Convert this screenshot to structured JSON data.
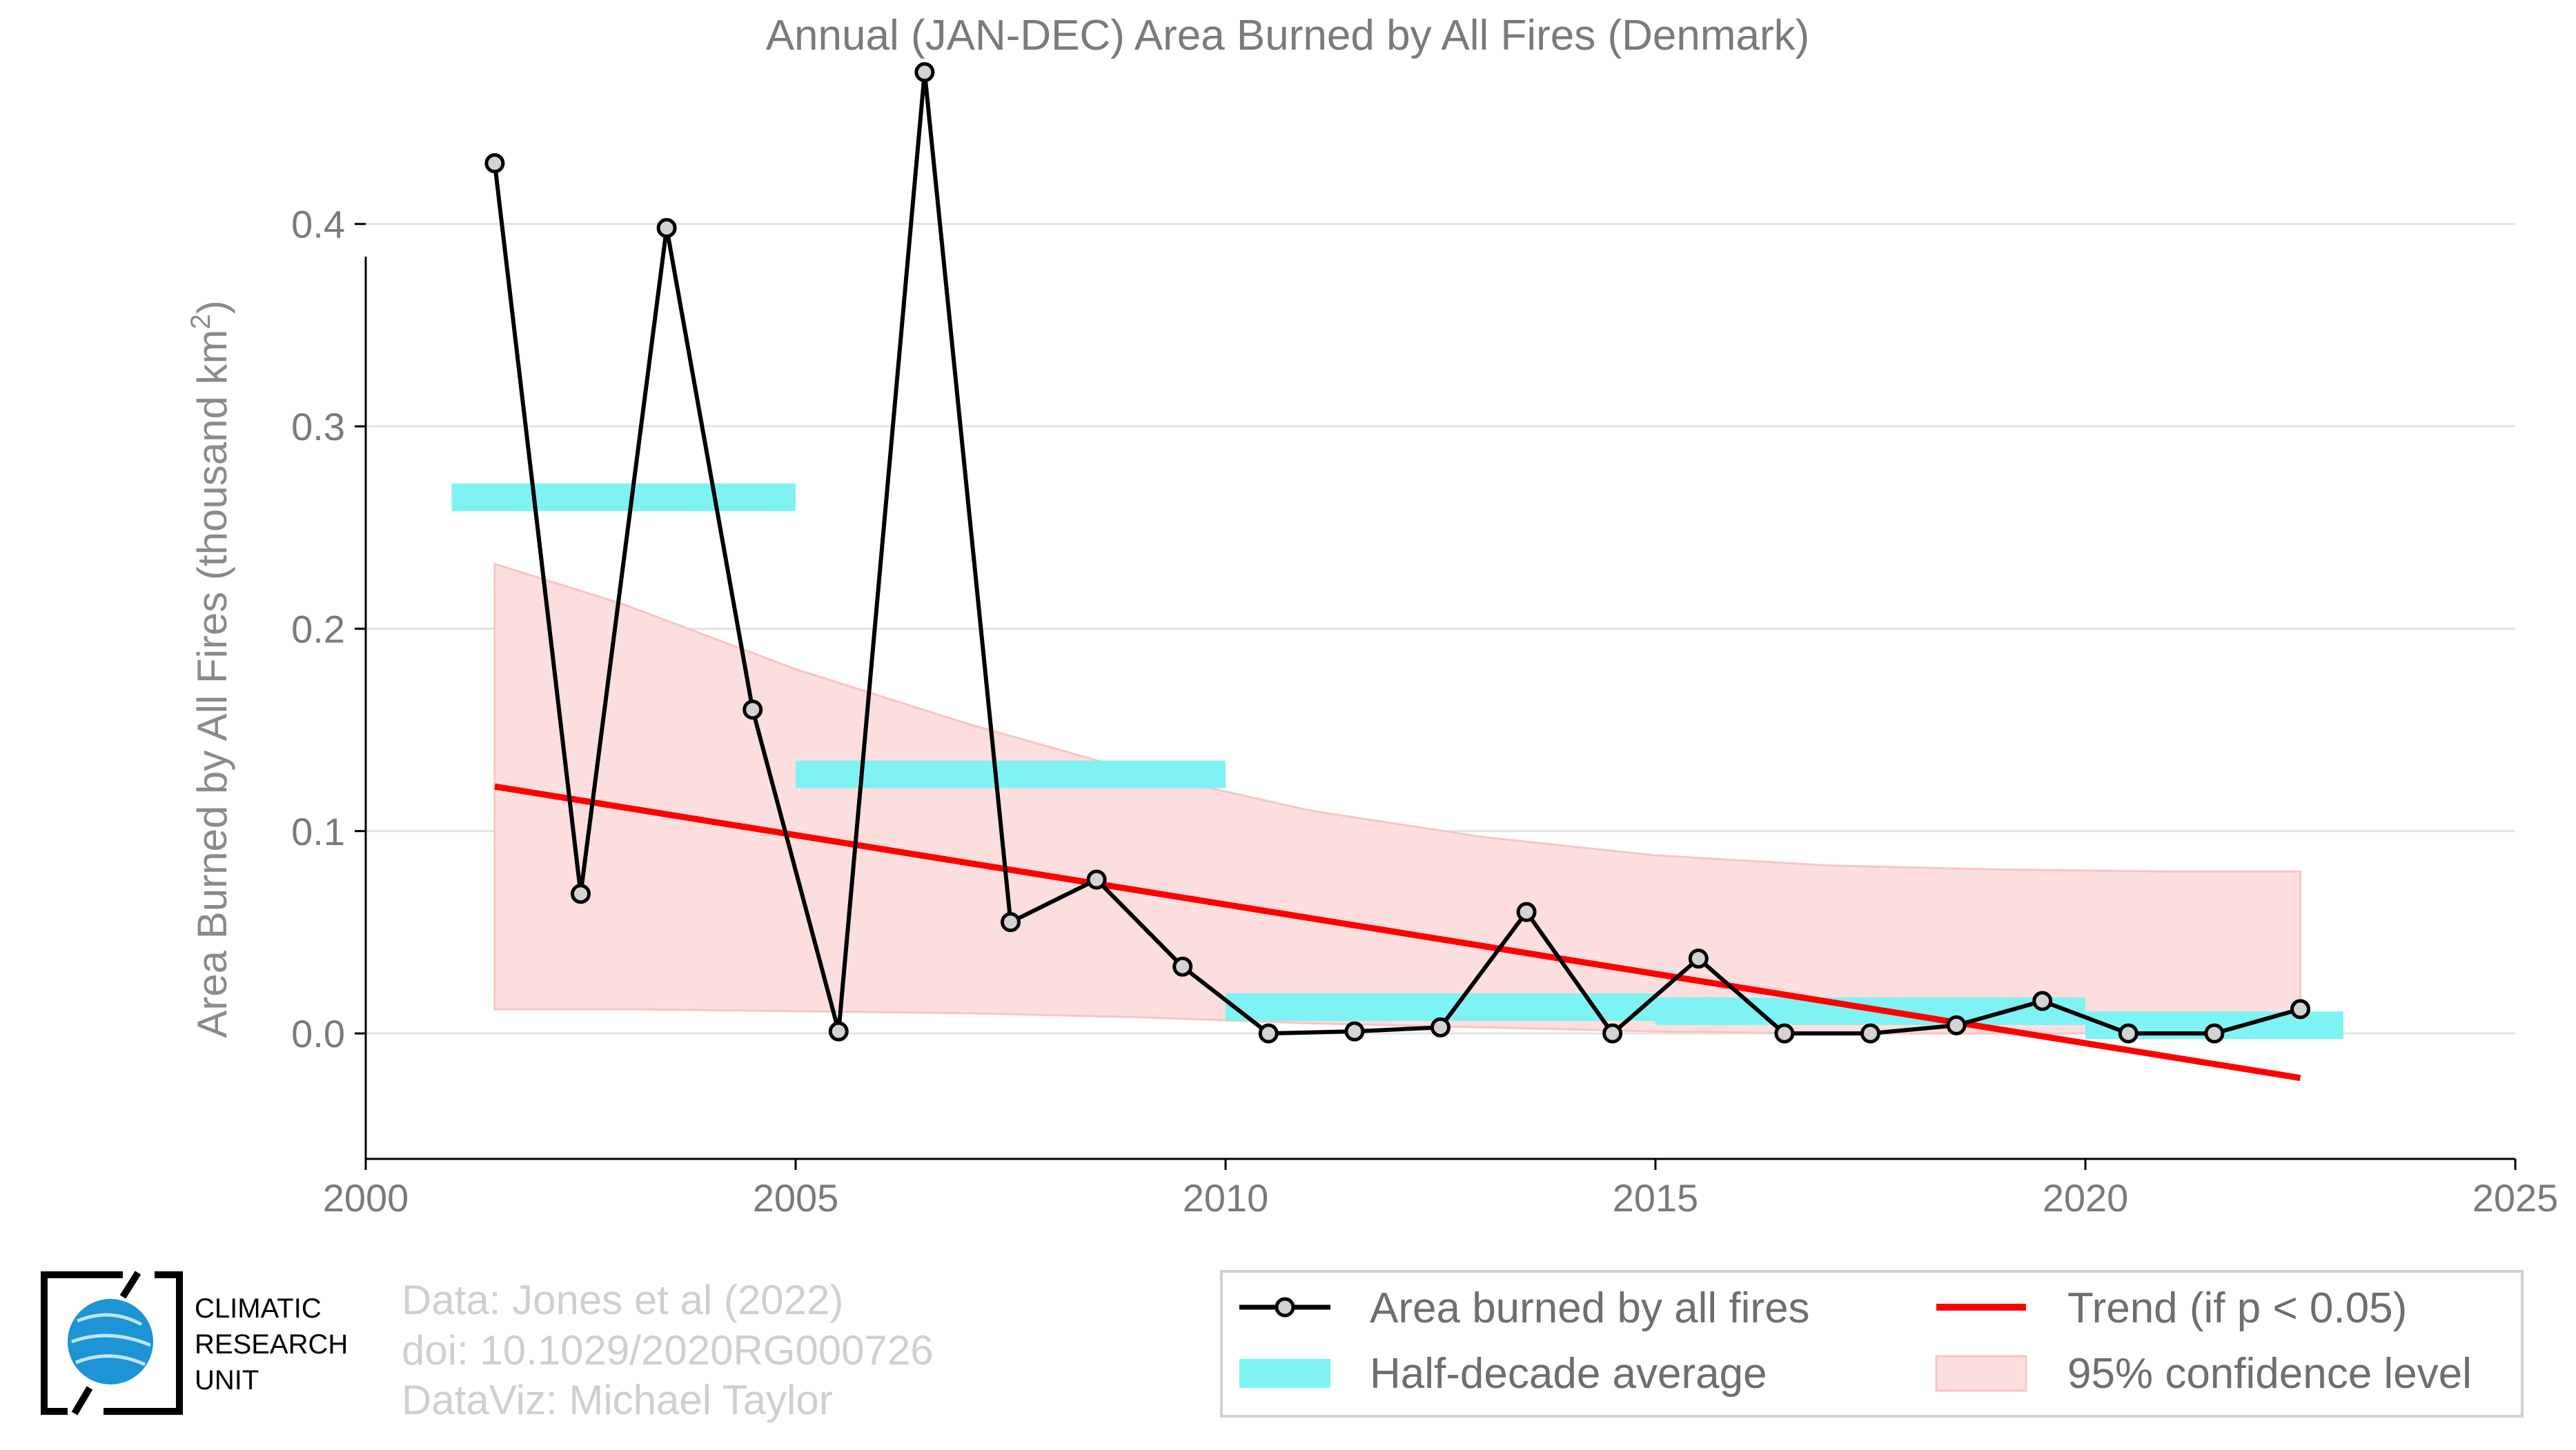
{
  "chart_data": {
    "type": "line",
    "title": "Annual (JAN-DEC) Area Burned by All Fires (Denmark)",
    "ylabel": "Area Burned by All Fires (thousand km",
    "ylabel_sup": "2",
    "ylabel_end": ")",
    "xlim": [
      2000,
      2025
    ],
    "ylim": [
      -0.062,
      0.48
    ],
    "x_ticks": [
      "2000",
      "2005",
      "2010",
      "2015",
      "2020",
      "2025"
    ],
    "y_ticks": [
      "0.0",
      "0.1",
      "0.2",
      "0.3",
      "0.4"
    ],
    "y_tick_values": [
      0.0,
      0.1,
      0.2,
      0.3,
      0.4
    ],
    "grid": "horizontal",
    "series": [
      {
        "name": "Area burned by all fires",
        "color": "#000000",
        "x": [
          2001.5,
          2002.5,
          2003.5,
          2004.5,
          2005.5,
          2006.5,
          2007.5,
          2008.5,
          2009.5,
          2010.5,
          2011.5,
          2012.5,
          2013.5,
          2014.5,
          2015.5,
          2016.5,
          2017.5,
          2018.5,
          2019.5,
          2020.5,
          2021.5,
          2022.5
        ],
        "values": [
          0.43,
          0.069,
          0.398,
          0.16,
          0.001,
          0.475,
          0.055,
          0.076,
          0.033,
          0.0,
          0.001,
          0.003,
          0.06,
          0.0,
          0.037,
          0.0,
          0.0,
          0.004,
          0.016,
          0.0,
          0.0,
          0.012
        ]
      }
    ],
    "half_decade_average": {
      "name": "Half-decade average",
      "color": "#7ff3f3",
      "segments": [
        {
          "x0": 2001,
          "x1": 2005,
          "y": 0.265
        },
        {
          "x0": 2005,
          "x1": 2010,
          "y": 0.128
        },
        {
          "x0": 2010,
          "x1": 2015,
          "y": 0.013
        },
        {
          "x0": 2015,
          "x1": 2020,
          "y": 0.011
        },
        {
          "x0": 2020,
          "x1": 2023,
          "y": 0.004
        }
      ]
    },
    "trend": {
      "name": "Trend (if p < 0.05)",
      "color": "#ff0000",
      "x": [
        2001.5,
        2022.5
      ],
      "y": [
        0.122,
        -0.022
      ]
    },
    "confidence_band": {
      "name": "95% confidence level",
      "color": "#fddede",
      "x": [
        2001.5,
        2003,
        2005,
        2007,
        2009,
        2011,
        2013,
        2015,
        2017,
        2019,
        2021,
        2022.5
      ],
      "upper": [
        0.232,
        0.212,
        0.18,
        0.153,
        0.129,
        0.11,
        0.097,
        0.088,
        0.083,
        0.081,
        0.08,
        0.08
      ],
      "lower": [
        0.012,
        0.012,
        0.011,
        0.01,
        0.008,
        0.005,
        0.003,
        0.001,
        0.0,
        0.0,
        0.0,
        0.0
      ]
    },
    "legend_position": "bottom-right"
  },
  "credits": {
    "line1": "Data: Jones et al (2022)",
    "line2": "doi: 10.1029/2020RG000726",
    "line3": "DataViz: Michael Taylor"
  },
  "logo": {
    "line1": "CLIMATIC",
    "line2": "RESEARCH",
    "line3": "UNIT"
  }
}
